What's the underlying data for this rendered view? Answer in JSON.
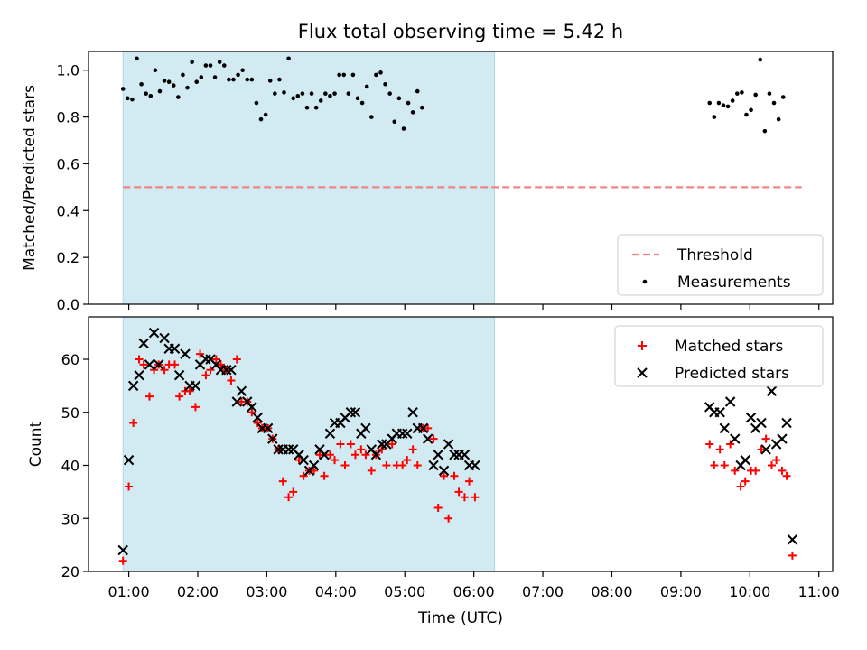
{
  "chart_data": [
    {
      "type": "scatter",
      "title": "Flux total observing time = 5.42 h",
      "xlabel": "",
      "ylabel": "Matched/Predicted stars",
      "ylim": [
        0.0,
        1.08
      ],
      "xlim": [
        "00:25",
        "11:12"
      ],
      "yticks": [
        "0.0",
        "0.2",
        "0.4",
        "0.6",
        "0.8",
        "1.0"
      ],
      "shaded_interval": [
        "00:55",
        "06:18"
      ],
      "legend_position": "lower-right",
      "colors": {
        "shade": "#add8e6",
        "threshold": "#f08080",
        "measurements": "#000000"
      },
      "series": [
        {
          "name": "Threshold",
          "style": "dashed-line",
          "points": [
            [
              "00:55",
              0.5
            ],
            [
              "10:45",
              0.5
            ]
          ]
        },
        {
          "name": "Measurements",
          "style": "dot",
          "points": [
            [
              "00:55",
              0.92
            ],
            [
              "00:59",
              0.88
            ],
            [
              "01:03",
              0.875
            ],
            [
              "01:07",
              1.05
            ],
            [
              "01:11",
              0.94
            ],
            [
              "01:15",
              0.9
            ],
            [
              "01:19",
              0.89
            ],
            [
              "01:23",
              1.0
            ],
            [
              "01:27",
              0.91
            ],
            [
              "01:31",
              0.955
            ],
            [
              "01:35",
              0.95
            ],
            [
              "01:39",
              0.935
            ],
            [
              "01:43",
              0.885
            ],
            [
              "01:47",
              0.98
            ],
            [
              "01:51",
              0.925
            ],
            [
              "01:55",
              1.035
            ],
            [
              "01:59",
              0.95
            ],
            [
              "02:03",
              0.97
            ],
            [
              "02:07",
              1.02
            ],
            [
              "02:11",
              1.02
            ],
            [
              "02:15",
              0.97
            ],
            [
              "02:19",
              1.035
            ],
            [
              "02:23",
              1.02
            ],
            [
              "02:27",
              0.96
            ],
            [
              "02:31",
              0.96
            ],
            [
              "02:35",
              0.98
            ],
            [
              "02:39",
              1.0
            ],
            [
              "02:43",
              0.96
            ],
            [
              "02:47",
              0.96
            ],
            [
              "02:51",
              0.86
            ],
            [
              "02:55",
              0.79
            ],
            [
              "02:59",
              0.81
            ],
            [
              "03:03",
              0.955
            ],
            [
              "03:07",
              0.9
            ],
            [
              "03:11",
              0.96
            ],
            [
              "03:15",
              0.905
            ],
            [
              "03:19",
              1.05
            ],
            [
              "03:23",
              0.88
            ],
            [
              "03:27",
              0.89
            ],
            [
              "03:31",
              0.9
            ],
            [
              "03:35",
              0.84
            ],
            [
              "03:39",
              0.9
            ],
            [
              "03:43",
              0.84
            ],
            [
              "03:47",
              0.87
            ],
            [
              "03:51",
              0.9
            ],
            [
              "03:55",
              0.89
            ],
            [
              "03:59",
              0.9
            ],
            [
              "04:03",
              0.98
            ],
            [
              "04:07",
              0.98
            ],
            [
              "04:11",
              0.9
            ],
            [
              "04:15",
              0.98
            ],
            [
              "04:19",
              0.88
            ],
            [
              "04:23",
              0.86
            ],
            [
              "04:27",
              0.93
            ],
            [
              "04:31",
              0.8
            ],
            [
              "04:35",
              0.98
            ],
            [
              "04:39",
              0.99
            ],
            [
              "04:43",
              0.94
            ],
            [
              "04:47",
              0.9
            ],
            [
              "04:51",
              0.78
            ],
            [
              "04:55",
              0.88
            ],
            [
              "04:59",
              0.75
            ],
            [
              "05:03",
              0.86
            ],
            [
              "05:07",
              0.82
            ],
            [
              "05:11",
              0.91
            ],
            [
              "05:15",
              0.84
            ],
            [
              "09:25",
              0.86
            ],
            [
              "09:29",
              0.8
            ],
            [
              "09:33",
              0.86
            ],
            [
              "09:37",
              0.85
            ],
            [
              "09:41",
              0.845
            ],
            [
              "09:45",
              0.87
            ],
            [
              "09:49",
              0.9
            ],
            [
              "09:53",
              0.905
            ],
            [
              "09:57",
              0.81
            ],
            [
              "10:01",
              0.83
            ],
            [
              "10:05",
              0.895
            ],
            [
              "10:09",
              1.045
            ],
            [
              "10:13",
              0.74
            ],
            [
              "10:17",
              0.9
            ],
            [
              "10:21",
              0.86
            ],
            [
              "10:25",
              0.79
            ],
            [
              "10:29",
              0.885
            ]
          ]
        }
      ]
    },
    {
      "type": "scatter",
      "title": "",
      "xlabel": "Time (UTC)",
      "ylabel": "Count",
      "ylim": [
        20,
        68
      ],
      "xlim": [
        "00:25",
        "11:12"
      ],
      "yticks": [
        "20",
        "30",
        "40",
        "50",
        "60"
      ],
      "xticks": [
        "01:00",
        "02:00",
        "03:00",
        "04:00",
        "05:00",
        "06:00",
        "07:00",
        "08:00",
        "09:00",
        "10:00",
        "11:00"
      ],
      "shaded_interval": [
        "00:55",
        "06:18"
      ],
      "legend_position": "top-right",
      "colors": {
        "shade": "#add8e6",
        "matched": "#ff0000",
        "predicted": "#000000"
      },
      "series": [
        {
          "name": "Matched stars",
          "style": "plus",
          "points": [
            [
              "00:55",
              22
            ],
            [
              "01:00",
              36
            ],
            [
              "01:04",
              48
            ],
            [
              "01:09",
              60
            ],
            [
              "01:13",
              59
            ],
            [
              "01:18",
              53
            ],
            [
              "01:22",
              58
            ],
            [
              "01:26",
              59
            ],
            [
              "01:31",
              58
            ],
            [
              "01:35",
              59
            ],
            [
              "01:40",
              59
            ],
            [
              "01:44",
              53
            ],
            [
              "01:49",
              54
            ],
            [
              "01:53",
              54
            ],
            [
              "01:58",
              51
            ],
            [
              "02:02",
              61
            ],
            [
              "02:07",
              57
            ],
            [
              "02:11",
              58
            ],
            [
              "02:16",
              60
            ],
            [
              "02:20",
              59
            ],
            [
              "02:25",
              58
            ],
            [
              "02:29",
              56
            ],
            [
              "02:34",
              60
            ],
            [
              "02:38",
              52
            ],
            [
              "02:43",
              52
            ],
            [
              "02:47",
              50
            ],
            [
              "02:52",
              48
            ],
            [
              "02:56",
              47
            ],
            [
              "03:01",
              47
            ],
            [
              "03:05",
              45
            ],
            [
              "03:10",
              43
            ],
            [
              "03:14",
              37
            ],
            [
              "03:19",
              34
            ],
            [
              "03:23",
              35
            ],
            [
              "03:28",
              41
            ],
            [
              "03:32",
              38
            ],
            [
              "03:37",
              39
            ],
            [
              "03:41",
              39
            ],
            [
              "03:46",
              42
            ],
            [
              "03:50",
              38
            ],
            [
              "03:55",
              42
            ],
            [
              "03:59",
              41
            ],
            [
              "04:04",
              44
            ],
            [
              "04:08",
              40
            ],
            [
              "04:13",
              44
            ],
            [
              "04:17",
              42
            ],
            [
              "04:22",
              43
            ],
            [
              "04:26",
              42
            ],
            [
              "04:31",
              39
            ],
            [
              "04:35",
              42
            ],
            [
              "04:40",
              43
            ],
            [
              "04:44",
              40
            ],
            [
              "04:49",
              44
            ],
            [
              "04:53",
              40
            ],
            [
              "04:58",
              40
            ],
            [
              "05:02",
              41
            ],
            [
              "05:07",
              43
            ],
            [
              "05:11",
              40
            ],
            [
              "05:16",
              47
            ],
            [
              "05:20",
              47
            ],
            [
              "05:25",
              45
            ],
            [
              "05:29",
              32
            ],
            [
              "05:34",
              38
            ],
            [
              "05:38",
              30
            ],
            [
              "05:43",
              38
            ],
            [
              "05:47",
              35
            ],
            [
              "05:52",
              34
            ],
            [
              "05:56",
              37
            ],
            [
              "06:01",
              34
            ],
            [
              "09:25",
              44
            ],
            [
              "09:29",
              40
            ],
            [
              "09:34",
              43
            ],
            [
              "09:38",
              40
            ],
            [
              "09:43",
              44
            ],
            [
              "09:47",
              39
            ],
            [
              "09:52",
              36
            ],
            [
              "09:56",
              37
            ],
            [
              "10:01",
              39
            ],
            [
              "10:05",
              39
            ],
            [
              "10:10",
              43
            ],
            [
              "10:14",
              45
            ],
            [
              "10:19",
              40
            ],
            [
              "10:23",
              41
            ],
            [
              "10:28",
              39
            ],
            [
              "10:32",
              38
            ],
            [
              "10:37",
              23
            ]
          ]
        },
        {
          "name": "Predicted stars",
          "style": "x",
          "points": [
            [
              "00:55",
              24
            ],
            [
              "01:00",
              41
            ],
            [
              "01:04",
              55
            ],
            [
              "01:09",
              57
            ],
            [
              "01:13",
              63
            ],
            [
              "01:18",
              59
            ],
            [
              "01:22",
              65
            ],
            [
              "01:26",
              59
            ],
            [
              "01:31",
              64
            ],
            [
              "01:35",
              62
            ],
            [
              "01:40",
              62
            ],
            [
              "01:44",
              57
            ],
            [
              "01:49",
              61
            ],
            [
              "01:53",
              55
            ],
            [
              "01:58",
              55
            ],
            [
              "02:02",
              59
            ],
            [
              "02:07",
              60
            ],
            [
              "02:11",
              60
            ],
            [
              "02:16",
              59
            ],
            [
              "02:20",
              58
            ],
            [
              "02:25",
              58
            ],
            [
              "02:29",
              58
            ],
            [
              "02:34",
              52
            ],
            [
              "02:38",
              54
            ],
            [
              "02:43",
              52
            ],
            [
              "02:47",
              51
            ],
            [
              "02:52",
              49
            ],
            [
              "02:56",
              47
            ],
            [
              "03:01",
              47
            ],
            [
              "03:05",
              45
            ],
            [
              "03:10",
              43
            ],
            [
              "03:14",
              43
            ],
            [
              "03:19",
              43
            ],
            [
              "03:23",
              43
            ],
            [
              "03:28",
              42
            ],
            [
              "03:32",
              41
            ],
            [
              "03:37",
              39
            ],
            [
              "03:41",
              40
            ],
            [
              "03:46",
              43
            ],
            [
              "03:50",
              42
            ],
            [
              "03:55",
              46
            ],
            [
              "03:59",
              48
            ],
            [
              "04:04",
              48
            ],
            [
              "04:08",
              49
            ],
            [
              "04:13",
              50
            ],
            [
              "04:17",
              50
            ],
            [
              "04:22",
              46
            ],
            [
              "04:26",
              47
            ],
            [
              "04:31",
              43
            ],
            [
              "04:35",
              42
            ],
            [
              "04:40",
              44
            ],
            [
              "04:44",
              44
            ],
            [
              "04:49",
              45
            ],
            [
              "04:53",
              46
            ],
            [
              "04:58",
              46
            ],
            [
              "05:02",
              46
            ],
            [
              "05:07",
              50
            ],
            [
              "05:11",
              47
            ],
            [
              "05:16",
              47
            ],
            [
              "05:20",
              45
            ],
            [
              "05:25",
              40
            ],
            [
              "05:29",
              42
            ],
            [
              "05:34",
              39
            ],
            [
              "05:38",
              44
            ],
            [
              "05:43",
              42
            ],
            [
              "05:47",
              42
            ],
            [
              "05:52",
              42
            ],
            [
              "05:56",
              40
            ],
            [
              "06:01",
              40
            ],
            [
              "09:25",
              51
            ],
            [
              "09:29",
              50
            ],
            [
              "09:34",
              50
            ],
            [
              "09:38",
              47
            ],
            [
              "09:43",
              52
            ],
            [
              "09:47",
              45
            ],
            [
              "09:52",
              40
            ],
            [
              "09:56",
              41
            ],
            [
              "10:01",
              49
            ],
            [
              "10:05",
              47
            ],
            [
              "10:10",
              48
            ],
            [
              "10:14",
              43
            ],
            [
              "10:19",
              54
            ],
            [
              "10:23",
              44
            ],
            [
              "10:28",
              45
            ],
            [
              "10:32",
              48
            ],
            [
              "10:37",
              26
            ]
          ]
        }
      ]
    }
  ]
}
